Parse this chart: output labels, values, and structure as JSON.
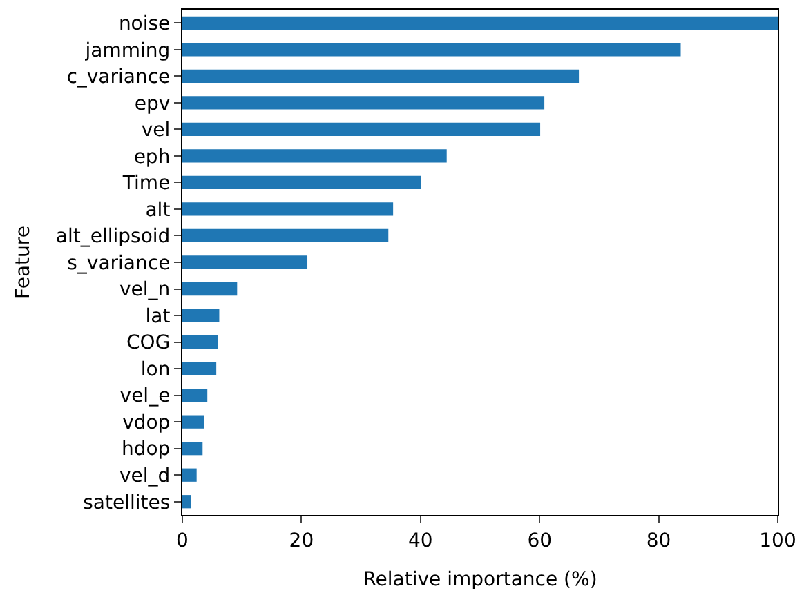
{
  "chart_data": {
    "type": "bar",
    "orientation": "horizontal",
    "xlabel": "Relative importance (%)",
    "ylabel": "Feature",
    "categories": [
      "noise",
      "jamming",
      "c_variance",
      "epv",
      "vel",
      "eph",
      "Time",
      "alt",
      "alt_ellipsoid",
      "s_variance",
      "vel_n",
      "lat",
      "COG",
      "lon",
      "vel_e",
      "vdop",
      "hdop",
      "vel_d",
      "satellites"
    ],
    "values": [
      100,
      83.7,
      66.6,
      60.8,
      60.1,
      44.4,
      40.1,
      35.4,
      34.6,
      21.0,
      9.2,
      6.2,
      6.0,
      5.7,
      4.2,
      3.7,
      3.4,
      2.4,
      1.4
    ],
    "color": "#1f77b4",
    "xlim": [
      0,
      100
    ],
    "xticks": [
      0,
      20,
      40,
      60,
      80,
      100
    ]
  }
}
